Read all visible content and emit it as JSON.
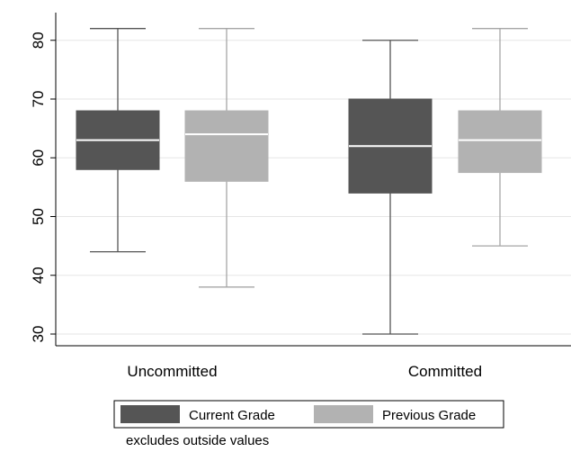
{
  "chart_data": {
    "type": "box",
    "categories": [
      "Uncommitted",
      "Committed"
    ],
    "series": [
      {
        "name": "Current Grade",
        "color": "#555555",
        "median_color": "#ffffff",
        "whisker_color": "#555555",
        "boxes": [
          {
            "min": 44,
            "q1": 58,
            "median": 63,
            "q3": 68,
            "max": 82
          },
          {
            "min": 30,
            "q1": 54,
            "median": 62,
            "q3": 70,
            "max": 80
          }
        ]
      },
      {
        "name": "Previous Grade",
        "color": "#b2b2b2",
        "median_color": "#ffffff",
        "whisker_color": "#a6a6a6",
        "boxes": [
          {
            "min": 38,
            "q1": 56,
            "median": 64,
            "q3": 68,
            "max": 82
          },
          {
            "min": 45,
            "q1": 57.5,
            "median": 63,
            "q3": 68,
            "max": 82
          }
        ]
      }
    ],
    "y_ticks": [
      30,
      40,
      50,
      60,
      70,
      80
    ],
    "ylim": [
      28.5,
      84.5
    ],
    "grid": true,
    "legend_position": "bottom",
    "note": "excludes outside values"
  }
}
